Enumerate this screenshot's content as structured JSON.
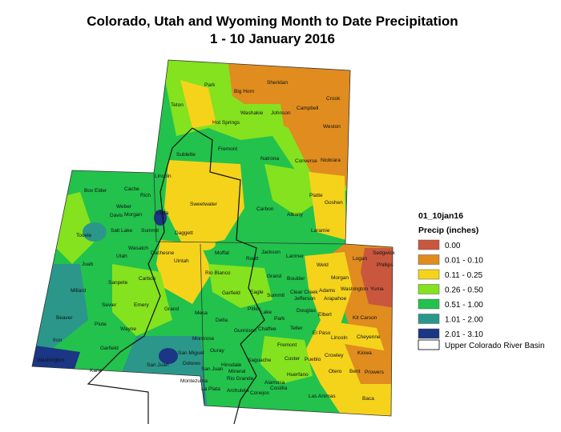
{
  "title": "Colorado, Utah and Wyoming Month to Date Precipitation",
  "subtitle": "1 - 10 January 2016",
  "legend": {
    "title": "01_10jan16",
    "subtitle": "Precip (inches)",
    "items": [
      {
        "label": "0.00",
        "color": "#c9573e"
      },
      {
        "label": "0.01 - 0.10",
        "color": "#e08c1f"
      },
      {
        "label": "0.11 - 0.25",
        "color": "#f5d31b"
      },
      {
        "label": "0.26 - 0.50",
        "color": "#84e21f"
      },
      {
        "label": "0.51 - 1.00",
        "color": "#22c24c"
      },
      {
        "label": "1.01 - 2.00",
        "color": "#2a978a"
      },
      {
        "label": "2.01 - 3.10",
        "color": "#1a3684"
      }
    ],
    "basin_label": "Upper Colorado River Basin"
  },
  "counties": [
    "Park",
    "Sheridan",
    "Crook",
    "Big Horn",
    "Washakie",
    "Johnson",
    "Campbell",
    "Teton",
    "Hot Springs",
    "Weston",
    "Fremont",
    "Natrona",
    "Converse",
    "Niobrara",
    "Sublette",
    "Lincoln",
    "Sweetwater",
    "Carbon",
    "Albany",
    "Platte",
    "Goshen",
    "Laramie",
    "Box Elder",
    "Cache",
    "Rich",
    "Weber",
    "Morgan",
    "Davis",
    "Uinta",
    "Summit",
    "Salt Lake",
    "Daggett",
    "Tooele",
    "Wasatch",
    "Duchesne",
    "Utah",
    "Uintah",
    "Moffat",
    "Routt",
    "Jackson",
    "Larimer",
    "Logan",
    "Sedgwick",
    "Phillips",
    "Weld",
    "Juab",
    "Morgan",
    "Carbon",
    "Rio Blanco",
    "Grand",
    "Boulder",
    "Sanpete",
    "Millard",
    "Washington",
    "Yuma",
    "Eagle",
    "Adams",
    "Garfield",
    "Emery",
    "Sevier",
    "Grand",
    "Mesa",
    "Pitkin",
    "Lake",
    "Douglas",
    "Elbert",
    "Kit Carson",
    "Beaver",
    "Piute",
    "Delta",
    "Gunnison",
    "Chaffee",
    "Park",
    "Teller",
    "El Paso",
    "Lincoln",
    "Cheyenne",
    "Wayne",
    "Iron",
    "Garfield",
    "Montrose",
    "Ouray",
    "Fremont",
    "Custer",
    "Pueblo",
    "Crowley",
    "Kiowa",
    "Washington",
    "San Miguel",
    "Saguache",
    "Hinsdale",
    "Dolores",
    "San Juan",
    "Mineral",
    "Huerfano",
    "Otero",
    "Bent",
    "Prowers",
    "Kane",
    "San Juan",
    "Montezuma",
    "Rio Grande",
    "Alamosa",
    "La Plata",
    "Archuleta",
    "Conejos",
    "Costilla",
    "Las Animas",
    "Baca",
    "Clear Creek",
    "Jefferson",
    "Arapahoe",
    "Summit"
  ]
}
